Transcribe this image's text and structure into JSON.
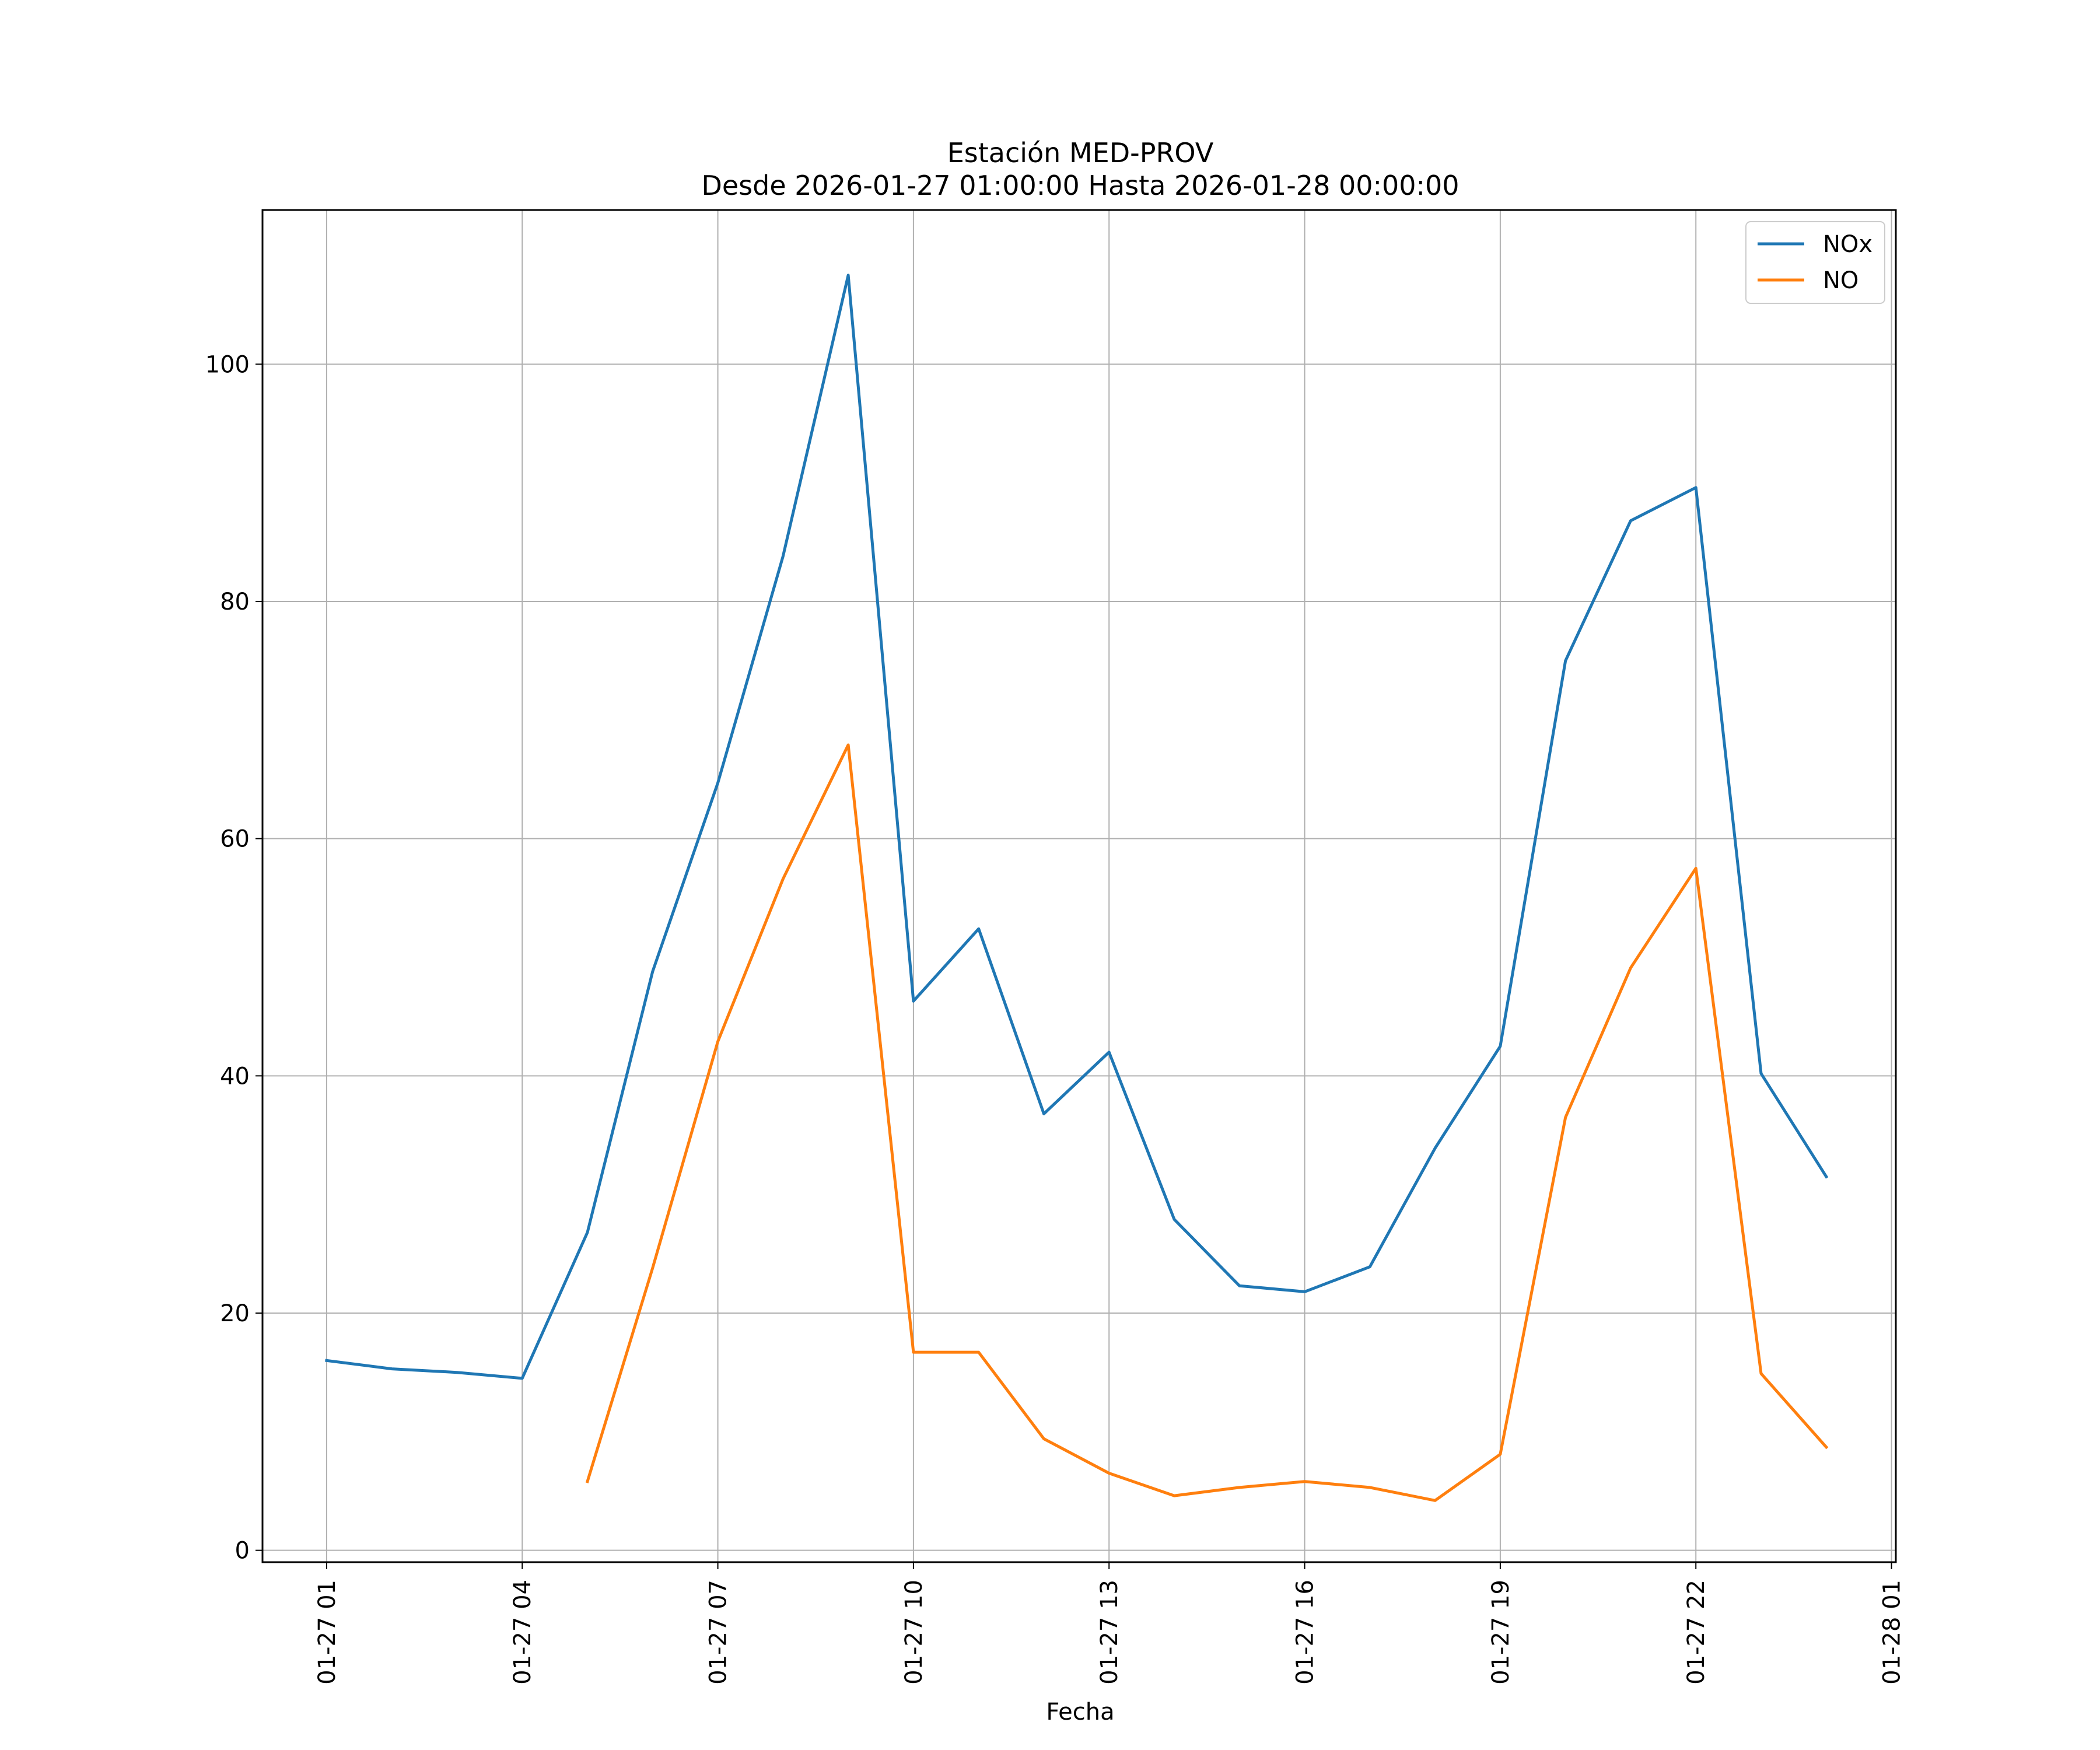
{
  "chart_data": {
    "type": "line",
    "title": "Estación MED-PROV",
    "subtitle": "Desde 2026-01-27 01:00:00 Hasta 2026-01-28 00:00:00",
    "xlabel": "Fecha",
    "ylabel": "",
    "x": [
      "01-27 01",
      "01-27 02",
      "01-27 03",
      "01-27 04",
      "01-27 05",
      "01-27 06",
      "01-27 07",
      "01-27 08",
      "01-27 09",
      "01-27 10",
      "01-27 11",
      "01-27 12",
      "01-27 13",
      "01-27 14",
      "01-27 15",
      "01-27 16",
      "01-27 17",
      "01-27 18",
      "01-27 19",
      "01-27 20",
      "01-27 21",
      "01-27 22",
      "01-27 23",
      "01-28 00"
    ],
    "x_ticks": [
      "01-27 01",
      "01-27 04",
      "01-27 07",
      "01-27 10",
      "01-27 13",
      "01-27 16",
      "01-27 19",
      "01-27 22",
      "01-28 01"
    ],
    "xlim": [
      "01-27 00:01",
      "01-28 01:04"
    ],
    "ylim": [
      -1,
      113
    ],
    "y_ticks": [
      0,
      20,
      40,
      60,
      80,
      100
    ],
    "grid": true,
    "legend_position": "top-right",
    "series": [
      {
        "name": "NOx",
        "color": "#1f77b4",
        "values": [
          16.0,
          15.3,
          15.0,
          14.5,
          26.8,
          48.8,
          64.7,
          83.8,
          107.5,
          46.3,
          52.4,
          36.8,
          42.0,
          27.9,
          22.3,
          21.8,
          23.9,
          33.9,
          42.5,
          75.0,
          86.8,
          89.6,
          40.2,
          31.5
        ]
      },
      {
        "name": "NO",
        "color": "#ff7f0e",
        "values": [
          null,
          null,
          null,
          null,
          5.8,
          23.8,
          42.9,
          56.6,
          67.9,
          16.7,
          16.7,
          9.4,
          6.5,
          4.6,
          5.3,
          5.8,
          5.3,
          4.2,
          8.1,
          36.5,
          49.1,
          57.5,
          14.9,
          8.7
        ]
      }
    ]
  }
}
